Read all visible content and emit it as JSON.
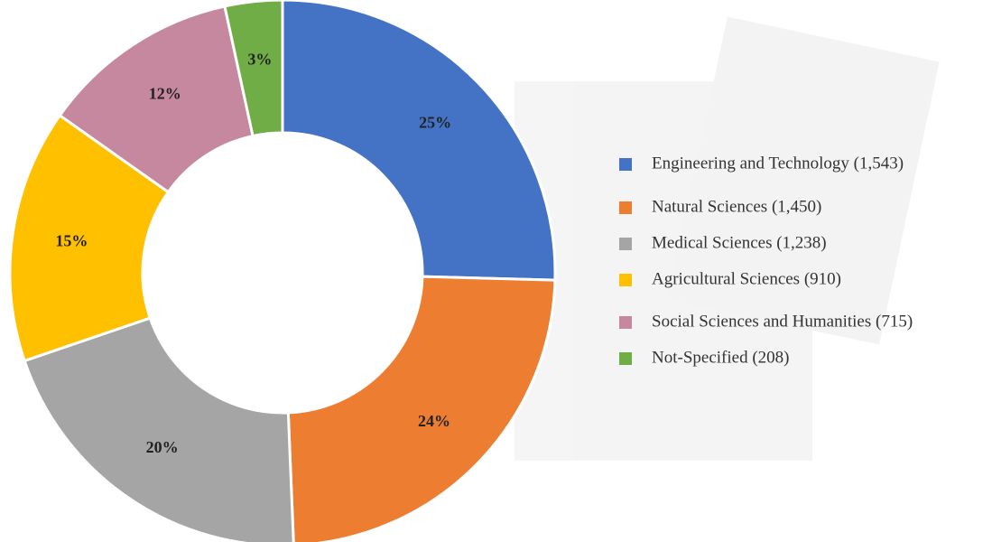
{
  "chart_data": {
    "type": "donut",
    "categories": [
      "Engineering and Technology (1,543)",
      "Natural Sciences (1,450)",
      "Medical Sciences (1,238)",
      "Agricultural Sciences (910)",
      "Social Sciences and Humanities (715)",
      "Not-Specified (208)"
    ],
    "values": [
      25.4,
      23.9,
      20.4,
      15.0,
      11.8,
      3.4
    ],
    "value_labels": [
      "25%",
      "24%",
      "20%",
      "15%",
      "12%",
      "3%"
    ],
    "colors": [
      "#4472c4",
      "#ed7d31",
      "#a5a5a5",
      "#ffc000",
      "#c5889e",
      "#70ad47"
    ],
    "legend": "right"
  }
}
